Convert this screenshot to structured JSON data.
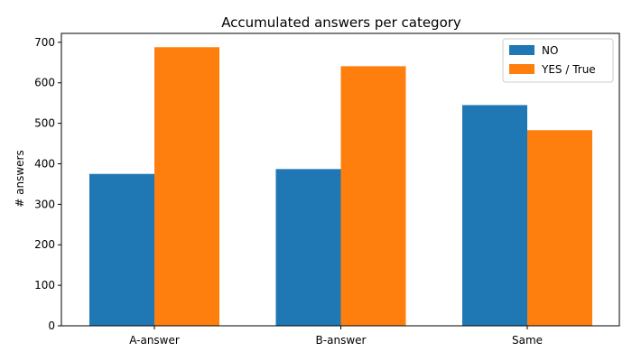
{
  "chart_data": {
    "type": "bar",
    "title": "Accumulated answers per category",
    "xlabel": "",
    "ylabel": "# answers",
    "categories": [
      "A-answer",
      "B-answer",
      "Same"
    ],
    "series": [
      {
        "name": "NO",
        "color": "#1f77b4",
        "values": [
          375,
          387,
          545
        ]
      },
      {
        "name": "YES / True",
        "color": "#ff7f0e",
        "values": [
          688,
          641,
          483
        ]
      }
    ],
    "ylim": [
      0,
      722
    ],
    "yticks": [
      0,
      100,
      200,
      300,
      400,
      500,
      600,
      700
    ],
    "grid": false,
    "legend_position": "top-right"
  }
}
